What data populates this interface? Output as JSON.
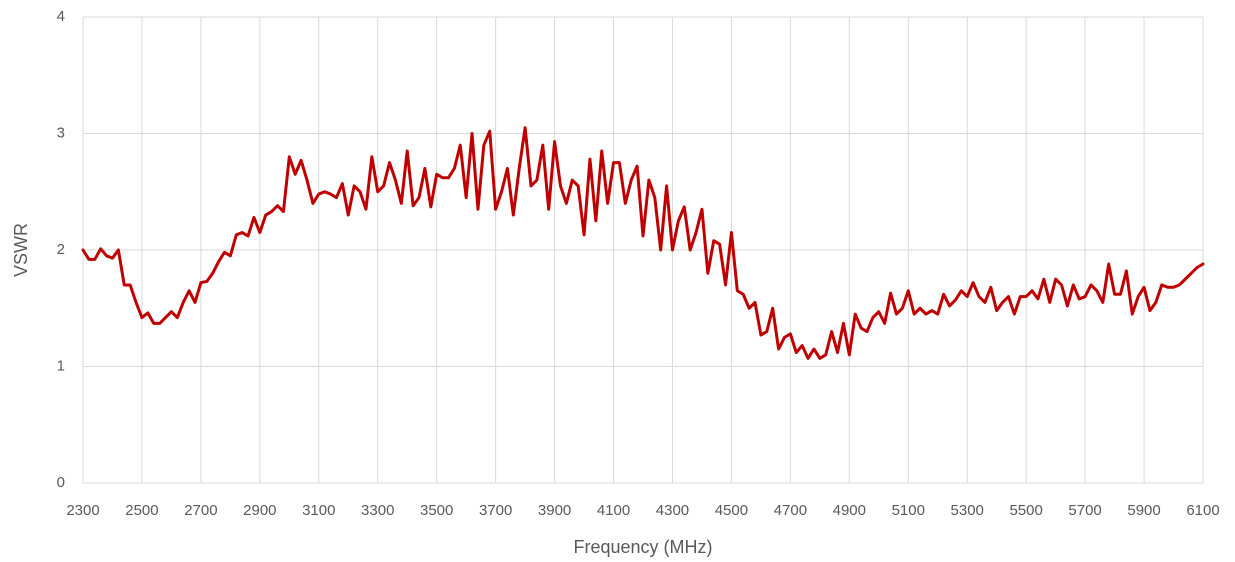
{
  "chart_data": {
    "type": "line",
    "x_label": "Frequency (MHz)",
    "y_label": "VSWR",
    "x": [
      2300,
      2320,
      2340,
      2360,
      2380,
      2400,
      2420,
      2440,
      2460,
      2480,
      2500,
      2520,
      2540,
      2560,
      2580,
      2600,
      2620,
      2640,
      2660,
      2680,
      2700,
      2720,
      2740,
      2760,
      2780,
      2800,
      2820,
      2840,
      2860,
      2880,
      2900,
      2920,
      2940,
      2960,
      2980,
      3000,
      3020,
      3040,
      3060,
      3080,
      3100,
      3120,
      3140,
      3160,
      3180,
      3200,
      3220,
      3240,
      3260,
      3280,
      3300,
      3320,
      3340,
      3360,
      3380,
      3400,
      3420,
      3440,
      3460,
      3480,
      3500,
      3520,
      3540,
      3560,
      3580,
      3600,
      3620,
      3640,
      3660,
      3680,
      3700,
      3720,
      3740,
      3760,
      3780,
      3800,
      3820,
      3840,
      3860,
      3880,
      3900,
      3920,
      3940,
      3960,
      3980,
      4000,
      4020,
      4040,
      4060,
      4080,
      4100,
      4120,
      4140,
      4160,
      4180,
      4200,
      4220,
      4240,
      4260,
      4280,
      4300,
      4320,
      4340,
      4360,
      4380,
      4400,
      4420,
      4440,
      4460,
      4480,
      4500,
      4520,
      4540,
      4560,
      4580,
      4600,
      4620,
      4640,
      4660,
      4680,
      4700,
      4720,
      4740,
      4760,
      4780,
      4800,
      4820,
      4840,
      4860,
      4880,
      4900,
      4920,
      4940,
      4960,
      4980,
      5000,
      5020,
      5040,
      5060,
      5080,
      5100,
      5120,
      5140,
      5160,
      5180,
      5200,
      5220,
      5240,
      5260,
      5280,
      5300,
      5320,
      5340,
      5360,
      5380,
      5400,
      5420,
      5440,
      5460,
      5480,
      5500,
      5520,
      5540,
      5560,
      5580,
      5600,
      5620,
      5640,
      5660,
      5680,
      5700,
      5720,
      5740,
      5760,
      5780,
      5800,
      5820,
      5840,
      5860,
      5880,
      5900,
      5920,
      5940,
      5960,
      5980,
      6000,
      6020,
      6040,
      6060,
      6080,
      6100
    ],
    "series": [
      {
        "color": "#c00000",
        "values": [
          2.0,
          1.92,
          1.92,
          2.01,
          1.95,
          1.93,
          2.0,
          1.7,
          1.7,
          1.55,
          1.42,
          1.46,
          1.37,
          1.37,
          1.42,
          1.47,
          1.42,
          1.55,
          1.65,
          1.55,
          1.72,
          1.73,
          1.8,
          1.9,
          1.98,
          1.95,
          2.13,
          2.15,
          2.12,
          2.28,
          2.15,
          2.3,
          2.33,
          2.38,
          2.33,
          2.8,
          2.65,
          2.77,
          2.6,
          2.4,
          2.48,
          2.5,
          2.48,
          2.45,
          2.57,
          2.3,
          2.55,
          2.5,
          2.35,
          2.8,
          2.5,
          2.55,
          2.75,
          2.6,
          2.4,
          2.85,
          2.38,
          2.45,
          2.7,
          2.37,
          2.65,
          2.62,
          2.62,
          2.7,
          2.9,
          2.45,
          3.0,
          2.35,
          2.9,
          3.02,
          2.35,
          2.5,
          2.7,
          2.3,
          2.7,
          3.05,
          2.55,
          2.6,
          2.9,
          2.35,
          2.93,
          2.55,
          2.4,
          2.6,
          2.55,
          2.13,
          2.78,
          2.25,
          2.85,
          2.4,
          2.75,
          2.75,
          2.4,
          2.6,
          2.72,
          2.12,
          2.6,
          2.45,
          2.0,
          2.55,
          2.0,
          2.25,
          2.37,
          2.0,
          2.15,
          2.35,
          1.8,
          2.08,
          2.05,
          1.7,
          2.15,
          1.65,
          1.62,
          1.5,
          1.55,
          1.27,
          1.3,
          1.5,
          1.15,
          1.25,
          1.28,
          1.12,
          1.18,
          1.07,
          1.15,
          1.07,
          1.1,
          1.3,
          1.12,
          1.37,
          1.1,
          1.45,
          1.33,
          1.3,
          1.42,
          1.47,
          1.37,
          1.63,
          1.45,
          1.5,
          1.65,
          1.45,
          1.5,
          1.45,
          1.48,
          1.45,
          1.62,
          1.52,
          1.57,
          1.65,
          1.6,
          1.72,
          1.6,
          1.55,
          1.68,
          1.48,
          1.55,
          1.6,
          1.45,
          1.6,
          1.6,
          1.65,
          1.58,
          1.75,
          1.55,
          1.75,
          1.7,
          1.52,
          1.7,
          1.58,
          1.6,
          1.7,
          1.65,
          1.55,
          1.88,
          1.62,
          1.62,
          1.82,
          1.45,
          1.6,
          1.68,
          1.48,
          1.55,
          1.7,
          1.68,
          1.68,
          1.7,
          1.75,
          1.8,
          1.85,
          1.88
        ]
      }
    ],
    "xlim": [
      2300,
      6100
    ],
    "xticks": [
      2300,
      2500,
      2700,
      2900,
      3100,
      3300,
      3500,
      3700,
      3900,
      4100,
      4300,
      4500,
      4700,
      4900,
      5100,
      5300,
      5500,
      5700,
      5900,
      6100
    ],
    "ylim": [
      0,
      4
    ],
    "yticks": [
      0,
      1,
      2,
      3,
      4
    ],
    "grid": true
  }
}
